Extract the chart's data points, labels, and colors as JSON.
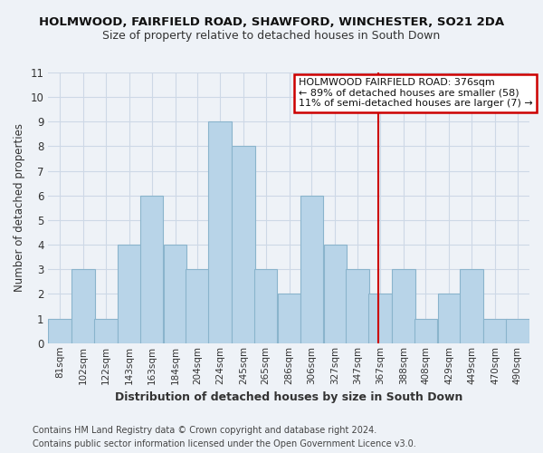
{
  "title": "HOLMWOOD, FAIRFIELD ROAD, SHAWFORD, WINCHESTER, SO21 2DA",
  "subtitle": "Size of property relative to detached houses in South Down",
  "xlabel": "Distribution of detached houses by size in South Down",
  "ylabel": "Number of detached properties",
  "bar_color": "#b8d4e8",
  "bar_edge_color": "#8ab4cc",
  "background_color": "#eef2f7",
  "bin_labels": [
    "81sqm",
    "102sqm",
    "122sqm",
    "143sqm",
    "163sqm",
    "184sqm",
    "204sqm",
    "224sqm",
    "245sqm",
    "265sqm",
    "286sqm",
    "306sqm",
    "327sqm",
    "347sqm",
    "367sqm",
    "388sqm",
    "408sqm",
    "429sqm",
    "449sqm",
    "470sqm",
    "490sqm"
  ],
  "bar_heights": [
    1,
    3,
    1,
    4,
    6,
    4,
    3,
    9,
    8,
    3,
    2,
    6,
    4,
    3,
    2,
    3,
    1,
    2,
    3,
    1,
    1
  ],
  "ylim": [
    0,
    11
  ],
  "yticks": [
    0,
    1,
    2,
    3,
    4,
    5,
    6,
    7,
    8,
    9,
    10,
    11
  ],
  "bin_starts": [
    81,
    102,
    122,
    143,
    163,
    184,
    204,
    224,
    245,
    265,
    286,
    306,
    327,
    347,
    367,
    388,
    408,
    429,
    449,
    470,
    490
  ],
  "bin_width": 21,
  "property_line_x": 376,
  "property_line_color": "#cc0000",
  "annotation_title": "HOLMWOOD FAIRFIELD ROAD: 376sqm",
  "annotation_line1": "← 89% of detached houses are smaller (58)",
  "annotation_line2": "11% of semi-detached houses are larger (7) →",
  "footer_line1": "Contains HM Land Registry data © Crown copyright and database right 2024.",
  "footer_line2": "Contains public sector information licensed under the Open Government Licence v3.0.",
  "grid_color": "#cdd8e6"
}
